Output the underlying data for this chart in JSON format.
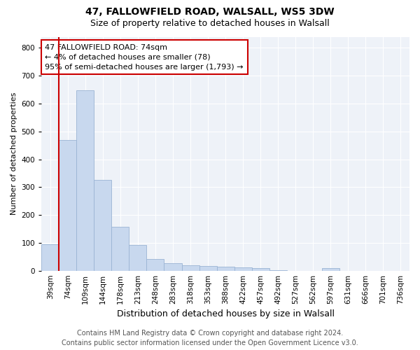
{
  "title_line1": "47, FALLOWFIELD ROAD, WALSALL, WS5 3DW",
  "title_line2": "Size of property relative to detached houses in Walsall",
  "xlabel": "Distribution of detached houses by size in Walsall",
  "ylabel": "Number of detached properties",
  "categories": [
    "39sqm",
    "74sqm",
    "109sqm",
    "144sqm",
    "178sqm",
    "213sqm",
    "248sqm",
    "283sqm",
    "318sqm",
    "353sqm",
    "388sqm",
    "422sqm",
    "457sqm",
    "492sqm",
    "527sqm",
    "562sqm",
    "597sqm",
    "631sqm",
    "666sqm",
    "701sqm",
    "736sqm"
  ],
  "values": [
    95,
    470,
    648,
    325,
    158,
    92,
    42,
    28,
    20,
    17,
    15,
    13,
    8,
    1,
    0,
    0,
    10,
    0,
    0,
    0,
    0
  ],
  "bar_color": "#c8d8ee",
  "bar_edge_color": "#9ab4d4",
  "highlight_index": 1,
  "highlight_color": "#cc0000",
  "ylim": [
    0,
    840
  ],
  "yticks": [
    0,
    100,
    200,
    300,
    400,
    500,
    600,
    700,
    800
  ],
  "annotation_text": "47 FALLOWFIELD ROAD: 74sqm\n← 4% of detached houses are smaller (78)\n95% of semi-detached houses are larger (1,793) →",
  "annotation_box_color": "#ffffff",
  "annotation_box_edge": "#cc0000",
  "footer_line1": "Contains HM Land Registry data © Crown copyright and database right 2024.",
  "footer_line2": "Contains public sector information licensed under the Open Government Licence v3.0.",
  "background_color": "#eef2f8",
  "grid_color": "#ffffff",
  "title1_fontsize": 10,
  "title2_fontsize": 9,
  "xlabel_fontsize": 9,
  "ylabel_fontsize": 8,
  "tick_fontsize": 7.5,
  "footer_fontsize": 7,
  "ann_fontsize": 8
}
